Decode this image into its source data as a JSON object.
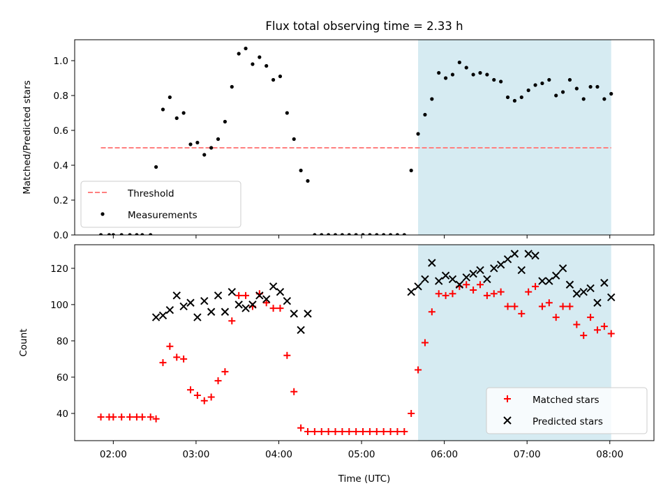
{
  "title": "Flux total observing time = 2.33 h",
  "xlabel": "Time (UTC)",
  "colors": {
    "threshold": "#ff7f7f",
    "measurements": "#000000",
    "matched": "#ff0000",
    "predicted": "#000000",
    "span": "#add8e6"
  },
  "chart_data": [
    {
      "type": "scatter",
      "ylabel": "Matched/Predicted stars",
      "ylim": [
        0,
        1.12
      ],
      "yticks": [
        "0.0",
        "0.2",
        "0.4",
        "0.6",
        "0.8",
        "1.0"
      ],
      "ytick_values": [
        0,
        0.2,
        0.4,
        0.6,
        0.8,
        1.0
      ],
      "xlim": [
        "01:32",
        "08:32"
      ],
      "xticks": [
        "02:00",
        "03:00",
        "04:00",
        "05:00",
        "06:00",
        "07:00",
        "08:00"
      ],
      "shaded_span": [
        "05:41",
        "08:01"
      ],
      "legend_placement": "lower-left",
      "threshold": {
        "name": "Threshold",
        "y": 0.5,
        "x_range": [
          "01:51",
          "08:01"
        ],
        "style": "dashed"
      },
      "series": [
        {
          "name": "Measurements",
          "marker": "dot",
          "points": [
            [
              "01:51",
              0
            ],
            [
              "01:57",
              0
            ],
            [
              "02:00",
              0
            ],
            [
              "02:06",
              0
            ],
            [
              "02:12",
              0
            ],
            [
              "02:17",
              0
            ],
            [
              "02:21",
              0
            ],
            [
              "02:27",
              0
            ],
            [
              "02:31",
              0.39
            ],
            [
              "02:36",
              0.72
            ],
            [
              "02:41",
              0.79
            ],
            [
              "02:46",
              0.67
            ],
            [
              "02:51",
              0.7
            ],
            [
              "02:56",
              0.52
            ],
            [
              "03:01",
              0.53
            ],
            [
              "03:06",
              0.46
            ],
            [
              "03:11",
              0.5
            ],
            [
              "03:16",
              0.55
            ],
            [
              "03:21",
              0.65
            ],
            [
              "03:26",
              0.85
            ],
            [
              "03:31",
              1.04
            ],
            [
              "03:36",
              1.07
            ],
            [
              "03:41",
              0.98
            ],
            [
              "03:46",
              1.02
            ],
            [
              "03:51",
              0.97
            ],
            [
              "03:56",
              0.89
            ],
            [
              "04:01",
              0.91
            ],
            [
              "04:06",
              0.7
            ],
            [
              "04:11",
              0.55
            ],
            [
              "04:16",
              0.37
            ],
            [
              "04:21",
              0.31
            ],
            [
              "04:26",
              0
            ],
            [
              "04:31",
              0
            ],
            [
              "04:36",
              0
            ],
            [
              "04:41",
              0
            ],
            [
              "04:46",
              0
            ],
            [
              "04:51",
              0
            ],
            [
              "04:56",
              0
            ],
            [
              "05:01",
              0
            ],
            [
              "05:06",
              0
            ],
            [
              "05:11",
              0
            ],
            [
              "05:16",
              0
            ],
            [
              "05:21",
              0
            ],
            [
              "05:26",
              0
            ],
            [
              "05:31",
              0
            ],
            [
              "05:36",
              0.37
            ],
            [
              "05:41",
              0.58
            ],
            [
              "05:46",
              0.69
            ],
            [
              "05:51",
              0.78
            ],
            [
              "05:56",
              0.93
            ],
            [
              "06:01",
              0.9
            ],
            [
              "06:06",
              0.92
            ],
            [
              "06:11",
              0.99
            ],
            [
              "06:16",
              0.96
            ],
            [
              "06:21",
              0.92
            ],
            [
              "06:26",
              0.93
            ],
            [
              "06:31",
              0.92
            ],
            [
              "06:36",
              0.89
            ],
            [
              "06:41",
              0.88
            ],
            [
              "06:46",
              0.79
            ],
            [
              "06:51",
              0.77
            ],
            [
              "06:56",
              0.79
            ],
            [
              "07:01",
              0.83
            ],
            [
              "07:06",
              0.86
            ],
            [
              "07:11",
              0.87
            ],
            [
              "07:16",
              0.89
            ],
            [
              "07:21",
              0.8
            ],
            [
              "07:26",
              0.82
            ],
            [
              "07:31",
              0.89
            ],
            [
              "07:36",
              0.84
            ],
            [
              "07:41",
              0.78
            ],
            [
              "07:46",
              0.85
            ],
            [
              "07:51",
              0.85
            ],
            [
              "07:56",
              0.78
            ],
            [
              "08:01",
              0.81
            ]
          ]
        }
      ]
    },
    {
      "type": "scatter",
      "ylabel": "Count",
      "ylim": [
        25,
        133
      ],
      "yticks": [
        "40",
        "60",
        "80",
        "100",
        "120"
      ],
      "ytick_values": [
        40,
        60,
        80,
        100,
        120
      ],
      "xlim": [
        "01:32",
        "08:32"
      ],
      "xticks": [
        "02:00",
        "03:00",
        "04:00",
        "05:00",
        "06:00",
        "07:00",
        "08:00"
      ],
      "shaded_span": [
        "05:41",
        "08:01"
      ],
      "legend_placement": "lower-right",
      "series": [
        {
          "name": "Matched stars",
          "marker": "plus",
          "points": [
            [
              "01:51",
              38
            ],
            [
              "01:57",
              38
            ],
            [
              "02:00",
              38
            ],
            [
              "02:06",
              38
            ],
            [
              "02:12",
              38
            ],
            [
              "02:17",
              38
            ],
            [
              "02:21",
              38
            ],
            [
              "02:27",
              38
            ],
            [
              "02:31",
              37
            ],
            [
              "02:36",
              68
            ],
            [
              "02:41",
              77
            ],
            [
              "02:46",
              71
            ],
            [
              "02:51",
              70
            ],
            [
              "02:56",
              53
            ],
            [
              "03:01",
              50
            ],
            [
              "03:06",
              47
            ],
            [
              "03:11",
              49
            ],
            [
              "03:16",
              58
            ],
            [
              "03:21",
              63
            ],
            [
              "03:26",
              91
            ],
            [
              "03:31",
              105
            ],
            [
              "03:36",
              105
            ],
            [
              "03:41",
              99
            ],
            [
              "03:46",
              106
            ],
            [
              "03:51",
              101
            ],
            [
              "03:56",
              98
            ],
            [
              "04:01",
              98
            ],
            [
              "04:06",
              72
            ],
            [
              "04:11",
              52
            ],
            [
              "04:16",
              32
            ],
            [
              "04:21",
              30
            ],
            [
              "04:26",
              30
            ],
            [
              "04:31",
              30
            ],
            [
              "04:36",
              30
            ],
            [
              "04:41",
              30
            ],
            [
              "04:46",
              30
            ],
            [
              "04:51",
              30
            ],
            [
              "04:56",
              30
            ],
            [
              "05:01",
              30
            ],
            [
              "05:06",
              30
            ],
            [
              "05:11",
              30
            ],
            [
              "05:16",
              30
            ],
            [
              "05:21",
              30
            ],
            [
              "05:26",
              30
            ],
            [
              "05:31",
              30
            ],
            [
              "05:36",
              40
            ],
            [
              "05:41",
              64
            ],
            [
              "05:46",
              79
            ],
            [
              "05:51",
              96
            ],
            [
              "05:56",
              106
            ],
            [
              "06:01",
              105
            ],
            [
              "06:06",
              106
            ],
            [
              "06:11",
              110
            ],
            [
              "06:16",
              111
            ],
            [
              "06:21",
              108
            ],
            [
              "06:26",
              111
            ],
            [
              "06:31",
              105
            ],
            [
              "06:36",
              106
            ],
            [
              "06:41",
              107
            ],
            [
              "06:46",
              99
            ],
            [
              "06:51",
              99
            ],
            [
              "06:56",
              95
            ],
            [
              "07:01",
              107
            ],
            [
              "07:06",
              110
            ],
            [
              "07:11",
              99
            ],
            [
              "07:16",
              101
            ],
            [
              "07:21",
              93
            ],
            [
              "07:26",
              99
            ],
            [
              "07:31",
              99
            ],
            [
              "07:36",
              89
            ],
            [
              "07:41",
              83
            ],
            [
              "07:46",
              93
            ],
            [
              "07:51",
              86
            ],
            [
              "07:56",
              88
            ],
            [
              "08:01",
              84
            ]
          ]
        },
        {
          "name": "Predicted stars",
          "marker": "x",
          "points": [
            [
              "02:31",
              93
            ],
            [
              "02:36",
              94
            ],
            [
              "02:41",
              97
            ],
            [
              "02:46",
              105
            ],
            [
              "02:51",
              99
            ],
            [
              "02:56",
              101
            ],
            [
              "03:01",
              93
            ],
            [
              "03:06",
              102
            ],
            [
              "03:11",
              96
            ],
            [
              "03:16",
              105
            ],
            [
              "03:21",
              96
            ],
            [
              "03:26",
              107
            ],
            [
              "03:31",
              100
            ],
            [
              "03:36",
              98
            ],
            [
              "03:41",
              100
            ],
            [
              "03:46",
              105
            ],
            [
              "03:51",
              103
            ],
            [
              "03:56",
              110
            ],
            [
              "04:01",
              107
            ],
            [
              "04:06",
              102
            ],
            [
              "04:11",
              95
            ],
            [
              "04:16",
              86
            ],
            [
              "04:21",
              95
            ],
            [
              "05:36",
              107
            ],
            [
              "05:41",
              110
            ],
            [
              "05:46",
              114
            ],
            [
              "05:51",
              123
            ],
            [
              "05:56",
              113
            ],
            [
              "06:01",
              116
            ],
            [
              "06:06",
              114
            ],
            [
              "06:11",
              111
            ],
            [
              "06:16",
              115
            ],
            [
              "06:21",
              117
            ],
            [
              "06:26",
              119
            ],
            [
              "06:31",
              114
            ],
            [
              "06:36",
              120
            ],
            [
              "06:41",
              122
            ],
            [
              "06:46",
              125
            ],
            [
              "06:51",
              128
            ],
            [
              "06:56",
              119
            ],
            [
              "07:01",
              128
            ],
            [
              "07:06",
              127
            ],
            [
              "07:11",
              113
            ],
            [
              "07:16",
              113
            ],
            [
              "07:21",
              116
            ],
            [
              "07:26",
              120
            ],
            [
              "07:31",
              111
            ],
            [
              "07:36",
              106
            ],
            [
              "07:41",
              107
            ],
            [
              "07:46",
              109
            ],
            [
              "07:51",
              101
            ],
            [
              "07:56",
              112
            ],
            [
              "08:01",
              104
            ]
          ]
        }
      ]
    }
  ]
}
